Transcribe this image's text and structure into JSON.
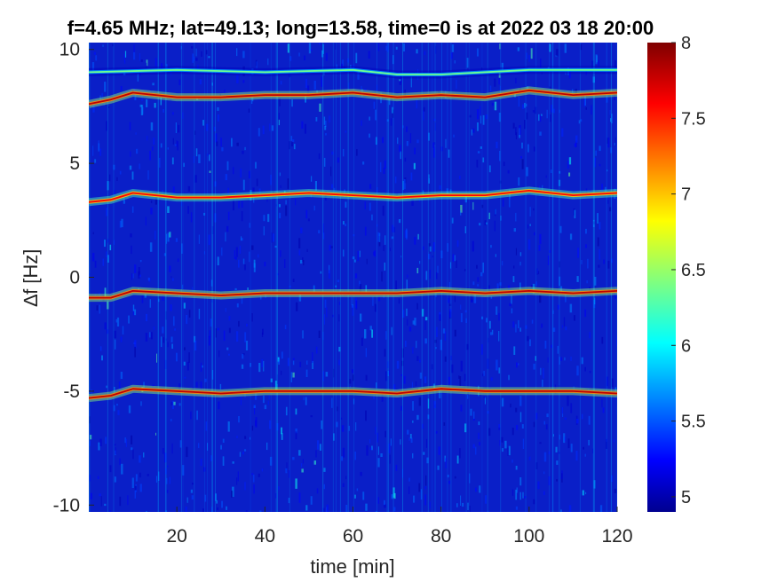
{
  "chart_data": {
    "type": "heatmap",
    "title": "f=4.65 MHz;  lat=49.13; long=13.58, time=0 is at 2022 03 18 20:00",
    "xlabel": "time [min]",
    "ylabel": "∆f [Hz]",
    "xlim": [
      0,
      120
    ],
    "ylim": [
      -10.3,
      10.3
    ],
    "x_ticks": [
      20,
      40,
      60,
      80,
      100,
      120
    ],
    "y_ticks": [
      -10,
      -5,
      0,
      5,
      10
    ],
    "x_tick_labels": [
      "20",
      "40",
      "60",
      "80",
      "100",
      "120"
    ],
    "y_tick_labels": [
      "-10",
      "-5",
      "0",
      "5",
      "10"
    ],
    "colorbar": {
      "colormap": "jet",
      "clim": [
        4.9,
        8.0
      ],
      "ticks": [
        5,
        5.5,
        6,
        6.5,
        7,
        7.5,
        8
      ],
      "tick_labels": [
        "5",
        "5.5",
        "6",
        "6.5",
        "7",
        "7.5",
        "8"
      ]
    },
    "background_level": 5.0,
    "series": [
      {
        "points": [
          [
            0,
            7.6
          ],
          [
            5,
            7.8
          ],
          [
            10,
            8.1
          ],
          [
            20,
            7.9
          ],
          [
            30,
            7.9
          ],
          [
            40,
            8.0
          ],
          [
            50,
            8.0
          ],
          [
            60,
            8.1
          ],
          [
            70,
            7.9
          ],
          [
            80,
            8.0
          ],
          [
            90,
            7.9
          ],
          [
            100,
            8.2
          ],
          [
            110,
            8.0
          ],
          [
            120,
            8.1
          ]
        ],
        "peak": 7.8
      },
      {
        "points": [
          [
            0,
            3.3
          ],
          [
            5,
            3.4
          ],
          [
            10,
            3.7
          ],
          [
            20,
            3.5
          ],
          [
            30,
            3.5
          ],
          [
            40,
            3.6
          ],
          [
            50,
            3.7
          ],
          [
            60,
            3.6
          ],
          [
            70,
            3.5
          ],
          [
            80,
            3.6
          ],
          [
            90,
            3.6
          ],
          [
            100,
            3.8
          ],
          [
            110,
            3.6
          ],
          [
            120,
            3.7
          ]
        ],
        "peak": 7.6
      },
      {
        "points": [
          [
            0,
            -0.9
          ],
          [
            5,
            -0.9
          ],
          [
            10,
            -0.6
          ],
          [
            20,
            -0.7
          ],
          [
            30,
            -0.8
          ],
          [
            40,
            -0.7
          ],
          [
            50,
            -0.7
          ],
          [
            60,
            -0.7
          ],
          [
            70,
            -0.7
          ],
          [
            80,
            -0.6
          ],
          [
            90,
            -0.7
          ],
          [
            100,
            -0.6
          ],
          [
            110,
            -0.7
          ],
          [
            120,
            -0.6
          ]
        ],
        "peak": 7.8
      },
      {
        "points": [
          [
            0,
            -5.3
          ],
          [
            5,
            -5.2
          ],
          [
            10,
            -4.9
          ],
          [
            20,
            -5.0
          ],
          [
            30,
            -5.1
          ],
          [
            40,
            -5.0
          ],
          [
            50,
            -5.0
          ],
          [
            60,
            -5.0
          ],
          [
            70,
            -5.1
          ],
          [
            80,
            -4.9
          ],
          [
            90,
            -5.0
          ],
          [
            100,
            -5.0
          ],
          [
            110,
            -5.0
          ],
          [
            120,
            -5.1
          ]
        ],
        "peak": 7.8
      },
      {
        "points": [
          [
            0,
            9.0
          ],
          [
            20,
            9.1
          ],
          [
            40,
            9.0
          ],
          [
            60,
            9.1
          ],
          [
            70,
            8.9
          ],
          [
            80,
            8.9
          ],
          [
            100,
            9.1
          ],
          [
            120,
            9.1
          ]
        ],
        "peak": 6.4
      }
    ]
  }
}
